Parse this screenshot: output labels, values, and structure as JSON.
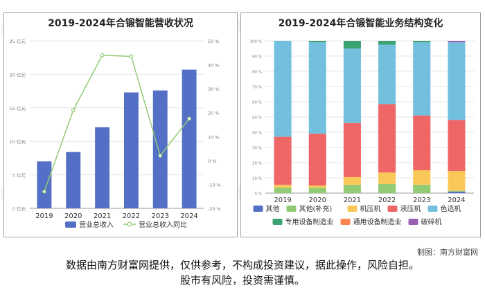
{
  "watermark": "南方财富网",
  "footer": {
    "source": "制图：南方财富网",
    "line1": "数据由南方财富网提供，仅供参考，不构成投资建议，据此操作，风险自担。",
    "line2": "股市有风险，投资需谨慎。"
  },
  "chart_data": [
    {
      "type": "bar",
      "title": "2019-2024年合锻智能营收状况",
      "categories": [
        "2019",
        "2020",
        "2021",
        "2022",
        "2023",
        "2024"
      ],
      "series": [
        {
          "name": "营业总收入",
          "type": "bar",
          "axis": "left",
          "values": [
            7.0,
            8.4,
            12.1,
            17.3,
            17.6,
            20.7
          ],
          "color": "#5470c6"
        },
        {
          "name": "营业总收入同比",
          "type": "line",
          "axis": "right",
          "values": [
            -13.0,
            21.0,
            44.0,
            43.5,
            2.0,
            17.5
          ],
          "color": "#91cc75"
        }
      ],
      "ylim_left": [
        0,
        25
      ],
      "ylim_right": [
        -20,
        50
      ],
      "yticks_left": [
        "0 亿元",
        "5 亿元",
        "10 亿元",
        "15 亿元",
        "20 亿元",
        "25 亿元"
      ],
      "yticks_right": [
        "-20 %",
        "-10 %",
        "0 %",
        "10 %",
        "20 %",
        "30 %",
        "40 %",
        "50 %"
      ],
      "legend_position": "bottom",
      "grid": true
    },
    {
      "type": "bar",
      "stacked": true,
      "title": "2019-2024年合锻智能业务结构变化",
      "categories": [
        "2019",
        "2020",
        "2021",
        "2022",
        "2023",
        "2024"
      ],
      "series": [
        {
          "name": "其他",
          "color": "#5470c6",
          "values": [
            0,
            0,
            0,
            0,
            0,
            1.0
          ]
        },
        {
          "name": "其他(补充)",
          "color": "#91cc75",
          "values": [
            3.5,
            3.5,
            5.5,
            6.0,
            5.5,
            0.5
          ]
        },
        {
          "name": "机压机",
          "color": "#fac858",
          "values": [
            2.0,
            1.5,
            5.0,
            7.5,
            9.5,
            13.0
          ]
        },
        {
          "name": "液压机",
          "color": "#ee6666",
          "values": [
            31.5,
            34.0,
            35.5,
            45.0,
            36.0,
            33.5
          ]
        },
        {
          "name": "色选机",
          "color": "#73c0de",
          "values": [
            63.0,
            60.0,
            49.0,
            39.0,
            48.0,
            51.0
          ]
        },
        {
          "name": "专用设备制造业",
          "color": "#3ba272",
          "values": [
            0,
            1.0,
            5.0,
            2.5,
            1.0,
            0
          ]
        },
        {
          "name": "通用设备制造业",
          "color": "#fc8452",
          "values": [
            0,
            0,
            0,
            0,
            0,
            0
          ]
        },
        {
          "name": "破碎机",
          "color": "#9a60b4",
          "values": [
            0,
            0,
            0,
            0,
            0,
            1.0
          ]
        }
      ],
      "ylim": [
        0,
        100
      ],
      "yticks": [
        "0 %",
        "10 %",
        "20 %",
        "30 %",
        "40 %",
        "50 %",
        "60 %",
        "70 %",
        "80 %",
        "90 %",
        "100 %"
      ],
      "legend_position": "bottom",
      "grid": true
    }
  ]
}
